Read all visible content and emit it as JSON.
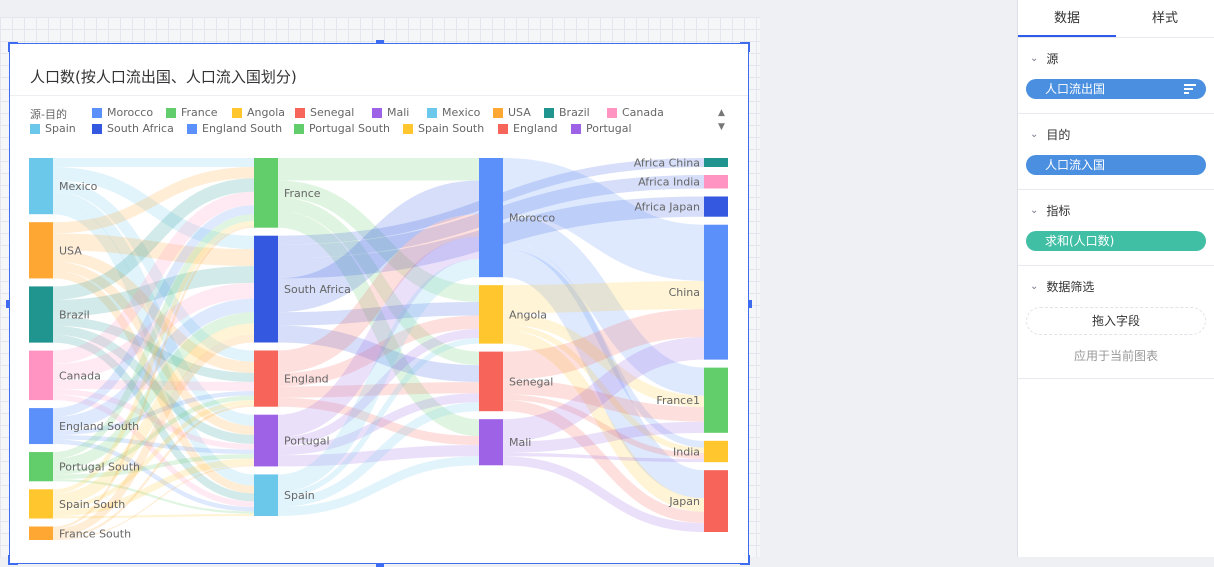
{
  "chart_title": "人口数(按人口流出国、人口流入国划分)",
  "legend": {
    "label": "源-目的",
    "items": [
      {
        "name": "Morocco",
        "color": "#5B8FF9"
      },
      {
        "name": "France",
        "color": "#62CD6B"
      },
      {
        "name": "Angola",
        "color": "#FFC62E"
      },
      {
        "name": "Senegal",
        "color": "#F7645A"
      },
      {
        "name": "Mali",
        "color": "#9D62E6"
      },
      {
        "name": "Mexico",
        "color": "#6CC8EB"
      },
      {
        "name": "USA",
        "color": "#FFA733"
      },
      {
        "name": "Brazil",
        "color": "#20958F"
      },
      {
        "name": "Canada",
        "color": "#FF94C2"
      },
      {
        "name": "South Africa",
        "color": "#3458DF"
      },
      {
        "name": "England South",
        "color": "#5B8FF9"
      },
      {
        "name": "Portugal South",
        "color": "#62CD6B"
      },
      {
        "name": "Spain South",
        "color": "#FFC62E"
      },
      {
        "name": "England",
        "color": "#F7645A"
      },
      {
        "name": "Portugal",
        "color": "#9D62E6"
      },
      {
        "name": "Spain",
        "color": "#6CC8EB"
      }
    ],
    "up": "▲",
    "down": "▼"
  },
  "chart_data": {
    "type": "sankey",
    "title": "人口数(按人口流出国、人口流入国划分)",
    "nodes": [
      {
        "name": "Mexico",
        "layer": 0,
        "color": "#6CC8EB"
      },
      {
        "name": "USA",
        "layer": 0,
        "color": "#FFA733"
      },
      {
        "name": "Brazil",
        "layer": 0,
        "color": "#20958F"
      },
      {
        "name": "Canada",
        "layer": 0,
        "color": "#FF94C2"
      },
      {
        "name": "England South",
        "layer": 0,
        "color": "#5B8FF9"
      },
      {
        "name": "Portugal South",
        "layer": 0,
        "color": "#62CD6B"
      },
      {
        "name": "Spain South",
        "layer": 0,
        "color": "#FFC62E"
      },
      {
        "name": "France South",
        "layer": 0,
        "color": "#FFA733"
      },
      {
        "name": "France",
        "layer": 1,
        "color": "#62CD6B"
      },
      {
        "name": "South Africa",
        "layer": 1,
        "color": "#3458DF"
      },
      {
        "name": "England",
        "layer": 1,
        "color": "#F7645A"
      },
      {
        "name": "Portugal",
        "layer": 1,
        "color": "#9D62E6"
      },
      {
        "name": "Spain",
        "layer": 1,
        "color": "#6CC8EB"
      },
      {
        "name": "Morocco",
        "layer": 2,
        "color": "#5B8FF9"
      },
      {
        "name": "Angola",
        "layer": 2,
        "color": "#FFC62E"
      },
      {
        "name": "Senegal",
        "layer": 2,
        "color": "#F7645A"
      },
      {
        "name": "Mali",
        "layer": 2,
        "color": "#9D62E6"
      },
      {
        "name": "Africa China",
        "layer": 3,
        "color": "#20958F"
      },
      {
        "name": "Africa India",
        "layer": 3,
        "color": "#FF94C2"
      },
      {
        "name": "Africa Japan",
        "layer": 3,
        "color": "#3458DF"
      },
      {
        "name": "China",
        "layer": 3,
        "color": "#5B8FF9"
      },
      {
        "name": "France1",
        "layer": 3,
        "color": "#62CD6B"
      },
      {
        "name": "India",
        "layer": 3,
        "color": "#FFC62E"
      },
      {
        "name": "Japan",
        "layer": 3,
        "color": "#F7645A"
      }
    ],
    "links": [
      [
        "Mexico",
        "France",
        8
      ],
      [
        "Mexico",
        "South Africa",
        12
      ],
      [
        "Mexico",
        "England",
        10
      ],
      [
        "Mexico",
        "Portugal",
        10
      ],
      [
        "Mexico",
        "Spain",
        10
      ],
      [
        "USA",
        "France",
        10
      ],
      [
        "USA",
        "South Africa",
        15
      ],
      [
        "USA",
        "England",
        10
      ],
      [
        "USA",
        "Portugal",
        8
      ],
      [
        "USA",
        "Spain",
        7
      ],
      [
        "Brazil",
        "France",
        12
      ],
      [
        "Brazil",
        "South Africa",
        15
      ],
      [
        "Brazil",
        "England",
        8
      ],
      [
        "Brazil",
        "Portugal",
        8
      ],
      [
        "Brazil",
        "Spain",
        7
      ],
      [
        "Canada",
        "France",
        12
      ],
      [
        "Canada",
        "South Africa",
        14
      ],
      [
        "Canada",
        "England",
        8
      ],
      [
        "Canada",
        "Portugal",
        5
      ],
      [
        "Canada",
        "Spain",
        5
      ],
      [
        "England South",
        "France",
        8
      ],
      [
        "England South",
        "South Africa",
        12
      ],
      [
        "England South",
        "England",
        4
      ],
      [
        "England South",
        "Portugal",
        4
      ],
      [
        "England South",
        "Spain",
        4
      ],
      [
        "Portugal South",
        "France",
        6
      ],
      [
        "Portugal South",
        "South Africa",
        10
      ],
      [
        "Portugal South",
        "England",
        4
      ],
      [
        "Portugal South",
        "Portugal",
        4
      ],
      [
        "Portugal South",
        "Spain",
        2
      ],
      [
        "Spain South",
        "France",
        4
      ],
      [
        "Spain South",
        "South Africa",
        10
      ],
      [
        "Spain South",
        "England",
        4
      ],
      [
        "Spain South",
        "Portugal",
        6
      ],
      [
        "Spain South",
        "Spain",
        2
      ],
      [
        "France South",
        "France",
        2
      ],
      [
        "France South",
        "South Africa",
        7
      ],
      [
        "France South",
        "England",
        2
      ],
      [
        "France South",
        "Portugal",
        1
      ],
      [
        "France",
        "Morocco",
        20
      ],
      [
        "France",
        "Angola",
        15
      ],
      [
        "France",
        "Senegal",
        12
      ],
      [
        "France",
        "Mali",
        15
      ],
      [
        "South Africa",
        "Africa China",
        8
      ],
      [
        "South Africa",
        "Africa India",
        12
      ],
      [
        "South Africa",
        "Africa Japan",
        18
      ],
      [
        "South Africa",
        "Morocco",
        30
      ],
      [
        "South Africa",
        "Angola",
        12
      ],
      [
        "South Africa",
        "Senegal",
        15
      ],
      [
        "England",
        "Morocco",
        20
      ],
      [
        "England",
        "Angola",
        12
      ],
      [
        "England",
        "Senegal",
        10
      ],
      [
        "England",
        "Mali",
        8
      ],
      [
        "Portugal",
        "Morocco",
        20
      ],
      [
        "Portugal",
        "Angola",
        8
      ],
      [
        "Portugal",
        "Senegal",
        8
      ],
      [
        "Portugal",
        "Mali",
        10
      ],
      [
        "Spain",
        "Morocco",
        16
      ],
      [
        "Spain",
        "Angola",
        5
      ],
      [
        "Spain",
        "Senegal",
        8
      ],
      [
        "Spain",
        "Mali",
        8
      ],
      [
        "Morocco",
        "China",
        50
      ],
      [
        "Morocco",
        "France1",
        25
      ],
      [
        "Morocco",
        "India",
        6
      ],
      [
        "Morocco",
        "Japan",
        25
      ],
      [
        "Angola",
        "China",
        25
      ],
      [
        "Angola",
        "France1",
        10
      ],
      [
        "Angola",
        "India",
        5
      ],
      [
        "Angola",
        "Japan",
        12
      ],
      [
        "Senegal",
        "China",
        25
      ],
      [
        "Senegal",
        "France1",
        13
      ],
      [
        "Senegal",
        "India",
        5
      ],
      [
        "Senegal",
        "Japan",
        10
      ],
      [
        "Mali",
        "China",
        20
      ],
      [
        "Mali",
        "France1",
        10
      ],
      [
        "Mali",
        "India",
        3
      ],
      [
        "Mali",
        "Japan",
        8
      ]
    ]
  },
  "panel": {
    "tabs": [
      "数据",
      "样式"
    ],
    "sections": [
      {
        "title": "源",
        "field": "人口流出国",
        "color": "#4a8fe0"
      },
      {
        "title": "目的",
        "field": "人口流入国",
        "color": "#4a8fe0"
      },
      {
        "title": "指标",
        "field": "求和(人口数)",
        "color": "#40bfa4"
      }
    ],
    "filter": {
      "title": "数据筛选",
      "drop": "拖入字段",
      "apply": "应用于当前图表"
    }
  }
}
